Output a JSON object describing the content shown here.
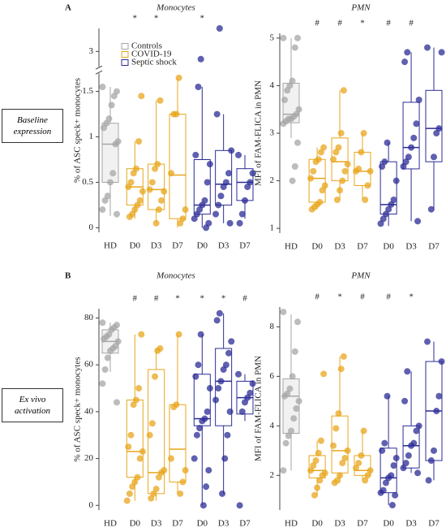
{
  "panel_labels": [
    "A",
    "B"
  ],
  "row_labels": [
    "Baseline expression",
    "Ex vivo activation"
  ],
  "chart_data": [
    {
      "type": "box",
      "title": "Monocytes",
      "y_label": "% of ASC speck+ monocytes",
      "categories": [
        "HD",
        "D0",
        "D3",
        "D7",
        "D0",
        "D3",
        "D7"
      ],
      "colors": [
        "#a6a6a6",
        "#e8a61c",
        "#e8a61c",
        "#e8a61c",
        "#2b2b96",
        "#2b2b96",
        "#2b2b96"
      ],
      "ylim": [
        -0.05,
        3.6
      ],
      "ybreak": [
        1.7,
        2.6
      ],
      "yticks": [
        0,
        0.5,
        1,
        1.5,
        3
      ],
      "legend": [
        {
          "name": "Controls",
          "color": "#a6a6a6"
        },
        {
          "name": "COVID-19",
          "color": "#e8a61c"
        },
        {
          "name": "Septic shock",
          "color": "#2b2b96"
        }
      ],
      "annotations": [
        null,
        "*",
        "*",
        null,
        "*",
        null,
        null
      ],
      "boxes": [
        {
          "min": 0.13,
          "q1": 0.5,
          "median": 0.92,
          "q3": 1.15,
          "max": 1.55
        },
        {
          "min": 0.1,
          "q1": 0.25,
          "median": 0.45,
          "q3": 0.65,
          "max": 0.95
        },
        {
          "min": 0.05,
          "q1": 0.2,
          "median": 0.42,
          "q3": 0.7,
          "max": 1.4
        },
        {
          "min": 0.0,
          "q1": 0.1,
          "median": 0.58,
          "q3": 1.25,
          "max": 1.65
        },
        {
          "min": 0.0,
          "q1": 0.15,
          "median": 0.25,
          "q3": 0.75,
          "max": 1.55
        },
        {
          "min": 0.05,
          "q1": 0.25,
          "median": 0.48,
          "q3": 0.85,
          "max": 1.25
        },
        {
          "min": 0.1,
          "q1": 0.3,
          "median": 0.5,
          "q3": 0.65,
          "max": 0.8
        }
      ],
      "points": [
        [
          1.55,
          1.5,
          1.45,
          1.35,
          1.2,
          1.15,
          1.1,
          0.95,
          0.92,
          0.6,
          0.5,
          0.35,
          0.3,
          0.2,
          0.15
        ],
        [
          1.45,
          0.95,
          0.65,
          0.6,
          0.5,
          0.45,
          0.4,
          0.3,
          0.25,
          0.2,
          0.15,
          0.12
        ],
        [
          1.4,
          0.7,
          0.65,
          0.5,
          0.42,
          0.4,
          0.3,
          0.2,
          0.05
        ],
        [
          1.65,
          1.25,
          1.25,
          0.6,
          0.2,
          0.1,
          0.05
        ],
        [
          2.8,
          1.55,
          0.8,
          0.7,
          0.5,
          0.3,
          0.25,
          0.2,
          0.15,
          0.1,
          0.05,
          0.0
        ],
        [
          3.6,
          1.25,
          0.85,
          0.6,
          0.5,
          0.45,
          0.35,
          0.25,
          0.15,
          0.05
        ],
        [
          0.8,
          0.6,
          0.5,
          0.45,
          0.3,
          0.15,
          0.05
        ]
      ]
    },
    {
      "type": "box",
      "title": "PMN",
      "y_label": "MFI of FAM-FLICA in PMN",
      "categories": [
        "HD",
        "D0",
        "D3",
        "D7",
        "D0",
        "D3",
        "D7"
      ],
      "colors": [
        "#a6a6a6",
        "#e8a61c",
        "#e8a61c",
        "#e8a61c",
        "#2b2b96",
        "#2b2b96",
        "#2b2b96"
      ],
      "ylim": [
        0.9,
        5.1
      ],
      "yticks": [
        1,
        2,
        3,
        4,
        5
      ],
      "annotations": [
        null,
        "#",
        "#",
        "*",
        "#",
        "#",
        null
      ],
      "boxes": [
        {
          "min": 2.9,
          "q1": 3.22,
          "median": 3.4,
          "q3": 4.05,
          "max": 5.0
        },
        {
          "min": 1.4,
          "q1": 1.55,
          "median": 2.05,
          "q3": 2.45,
          "max": 2.7
        },
        {
          "min": 1.6,
          "q1": 2.0,
          "median": 2.4,
          "q3": 2.9,
          "max": 3.9
        },
        {
          "min": 1.6,
          "q1": 1.9,
          "median": 2.2,
          "q3": 2.6,
          "max": 3.0
        },
        {
          "min": 1.05,
          "q1": 1.3,
          "median": 1.5,
          "q3": 2.4,
          "max": 2.8
        },
        {
          "min": 1.15,
          "q1": 2.25,
          "median": 2.7,
          "q3": 3.65,
          "max": 4.7
        },
        {
          "min": 1.4,
          "q1": 2.4,
          "median": 3.1,
          "q3": 3.9,
          "max": 4.8
        }
      ],
      "points": [
        [
          5.0,
          5.0,
          4.8,
          4.1,
          4.0,
          3.9,
          3.7,
          3.5,
          3.4,
          3.35,
          3.3,
          3.3,
          3.25,
          3.2,
          2.8,
          2.3,
          2.0
        ],
        [
          2.7,
          2.6,
          2.45,
          2.4,
          2.2,
          2.05,
          1.9,
          1.8,
          1.55,
          1.5,
          1.45,
          1.4
        ],
        [
          3.9,
          3.0,
          2.7,
          2.6,
          2.45,
          2.35,
          2.2,
          2.0,
          1.8,
          1.6
        ],
        [
          3.0,
          2.6,
          2.25,
          2.2,
          2.2,
          1.9,
          1.6
        ],
        [
          2.8,
          2.4,
          2.3,
          2.0,
          1.6,
          1.5,
          1.4,
          1.3,
          1.2,
          1.1
        ],
        [
          4.7,
          4.5,
          3.7,
          3.2,
          2.9,
          2.7,
          2.5,
          2.4,
          2.3,
          1.15
        ],
        [
          4.8,
          4.7,
          3.1,
          3.0,
          2.5,
          1.4
        ]
      ]
    },
    {
      "type": "box",
      "title": "Monocytes",
      "y_label": "% of ASC speck+ monocytes",
      "categories": [
        "HD",
        "D0",
        "D3",
        "D7",
        "D0",
        "D3",
        "D7"
      ],
      "colors": [
        "#a6a6a6",
        "#e8a61c",
        "#e8a61c",
        "#e8a61c",
        "#2b2b96",
        "#2b2b96",
        "#2b2b96"
      ],
      "ylim": [
        -2,
        84
      ],
      "yticks": [
        0,
        20,
        40,
        60,
        80
      ],
      "annotations": [
        null,
        "#",
        "#",
        "*",
        "*",
        "*",
        "#"
      ],
      "boxes": [
        {
          "min": 57,
          "q1": 65,
          "median": 70,
          "q3": 75,
          "max": 78
        },
        {
          "min": 2,
          "q1": 12,
          "median": 23,
          "q3": 45,
          "max": 73
        },
        {
          "min": 2,
          "q1": 5,
          "median": 14,
          "q3": 58,
          "max": 67
        },
        {
          "min": 5,
          "q1": 10,
          "median": 24,
          "q3": 43,
          "max": 73
        },
        {
          "min": 0,
          "q1": 34,
          "median": 37,
          "q3": 56,
          "max": 73
        },
        {
          "min": 5,
          "q1": 34,
          "median": 53,
          "q3": 67,
          "max": 82
        },
        {
          "min": 36,
          "q1": 39,
          "median": 46,
          "q3": 53,
          "max": 56
        }
      ],
      "points": [
        [
          78,
          77,
          76,
          75,
          73,
          72,
          71,
          70,
          68,
          67,
          66,
          63,
          58,
          52,
          44
        ],
        [
          73,
          50,
          45,
          43,
          30,
          25,
          23,
          20,
          12,
          10,
          8,
          5,
          2
        ],
        [
          67,
          66,
          55,
          35,
          30,
          15,
          14,
          12,
          7,
          5,
          3
        ],
        [
          73,
          43,
          42,
          20,
          15,
          10,
          5
        ],
        [
          73,
          60,
          55,
          50,
          40,
          37,
          36,
          33,
          30,
          20,
          15,
          8,
          0
        ],
        [
          82,
          79,
          70,
          65,
          60,
          58,
          53,
          50,
          45,
          40,
          30,
          20,
          5
        ],
        [
          56,
          52,
          48,
          46,
          44,
          40,
          0
        ]
      ]
    },
    {
      "type": "box",
      "title": "PMN",
      "y_label": "MFI of FAM-FLICA in PMN",
      "categories": [
        "HD",
        "D0",
        "D3",
        "D7",
        "D0",
        "D3",
        "D7"
      ],
      "colors": [
        "#a6a6a6",
        "#e8a61c",
        "#e8a61c",
        "#e8a61c",
        "#2b2b96",
        "#2b2b96",
        "#2b2b96"
      ],
      "ylim": [
        0.6,
        8.8
      ],
      "yticks": [
        2,
        4,
        6,
        8
      ],
      "annotations": [
        null,
        "#",
        "*",
        "#",
        "#",
        "*",
        null
      ],
      "boxes": [
        {
          "min": 2.2,
          "q1": 3.7,
          "median": 5.2,
          "q3": 5.9,
          "max": 8.5
        },
        {
          "min": 1.2,
          "q1": 1.9,
          "median": 2.2,
          "q3": 2.8,
          "max": 3.4
        },
        {
          "min": 1.7,
          "q1": 2.1,
          "median": 3.0,
          "q3": 4.4,
          "max": 6.8
        },
        {
          "min": 1.8,
          "q1": 2.0,
          "median": 2.2,
          "q3": 2.8,
          "max": 3.8
        },
        {
          "min": 0.8,
          "q1": 1.3,
          "median": 1.9,
          "q3": 3.1,
          "max": 5.2
        },
        {
          "min": 2.1,
          "q1": 2.3,
          "median": 3.2,
          "q3": 4.0,
          "max": 6.2
        },
        {
          "min": 1.8,
          "q1": 2.6,
          "median": 4.6,
          "q3": 6.6,
          "max": 7.4
        }
      ],
      "points": [
        [
          8.6,
          8.2,
          7.0,
          6.0,
          5.5,
          5.3,
          5.2,
          5.0,
          4.7,
          4.3,
          3.8,
          3.6,
          3.3,
          2.2
        ],
        [
          6.1,
          3.4,
          2.9,
          2.6,
          2.4,
          2.2,
          2.1,
          2.0,
          1.8,
          1.5,
          1.2
        ],
        [
          6.8,
          6.3,
          4.5,
          3.9,
          3.2,
          3.0,
          2.7,
          2.5,
          2.0,
          1.8,
          1.7
        ],
        [
          3.8,
          2.8,
          2.5,
          2.3,
          2.2,
          2.0,
          1.8
        ],
        [
          5.2,
          3.3,
          3.0,
          2.7,
          2.4,
          2.0,
          1.9,
          1.7,
          1.4,
          1.3,
          1.2,
          0.8
        ],
        [
          6.2,
          5.0,
          4.0,
          3.8,
          3.3,
          3.2,
          2.8,
          2.5,
          2.3,
          2.1
        ],
        [
          7.4,
          6.6,
          5.2,
          4.6,
          3.0,
          2.6,
          1.8
        ]
      ]
    }
  ]
}
